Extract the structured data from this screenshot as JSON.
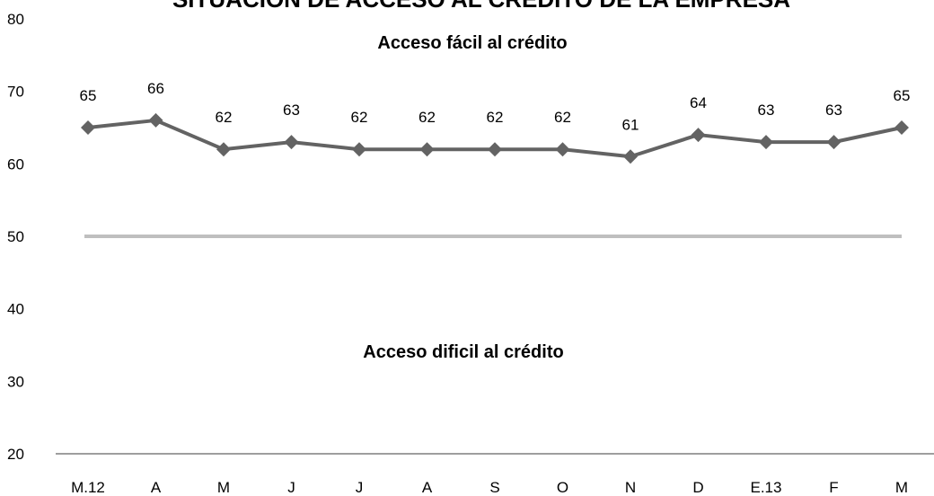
{
  "chart_data": {
    "type": "line",
    "title": "SITUACIÓN DE ACCESO AL CRÉDITO DE LA EMPRESA",
    "xlabel": "",
    "ylabel": "",
    "categories": [
      "M.12",
      "A",
      "M",
      "J",
      "J",
      "A",
      "S",
      "O",
      "N",
      "D",
      "E.13",
      "F",
      "M"
    ],
    "series": [
      {
        "values": [
          65,
          66,
          62,
          63,
          62,
          62,
          62,
          62,
          61,
          64,
          63,
          63,
          65
        ],
        "color": "#636363",
        "marker": "diamond",
        "data_labels": true
      }
    ],
    "reference_line": {
      "value": 50,
      "color": "#bfbfbf"
    },
    "annotations": {
      "upper": "Acceso fácil al crédito",
      "lower": "Acceso dificil al crédito"
    },
    "ylim": [
      20,
      80
    ],
    "yticks": [
      20,
      30,
      40,
      50,
      60,
      70,
      80
    ],
    "grid": false,
    "legend": "none"
  }
}
